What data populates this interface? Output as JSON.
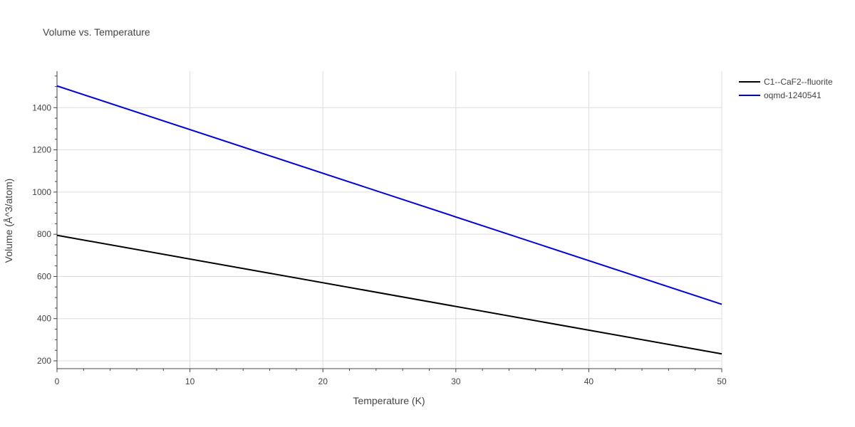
{
  "chart_data": {
    "type": "line",
    "title": "Volume vs. Temperature",
    "xlabel": "Temperature (K)",
    "ylabel": "Volume (Å^3/atom)",
    "xlim": [
      0,
      50
    ],
    "ylim": [
      163,
      1573
    ],
    "x_ticks": [
      0,
      10,
      20,
      30,
      40,
      50
    ],
    "y_ticks": [
      200,
      400,
      600,
      800,
      1000,
      1200,
      1400
    ],
    "grid": true,
    "legend_position": "top-right, outside plot",
    "series": [
      {
        "name": "C1--CaF2--fluorite",
        "color": "#000000",
        "x": [
          0,
          50
        ],
        "y": [
          795,
          233
        ]
      },
      {
        "name": "oqmd-1240541",
        "color": "#0000dd",
        "x": [
          0,
          50
        ],
        "y": [
          1503,
          468
        ]
      }
    ]
  }
}
